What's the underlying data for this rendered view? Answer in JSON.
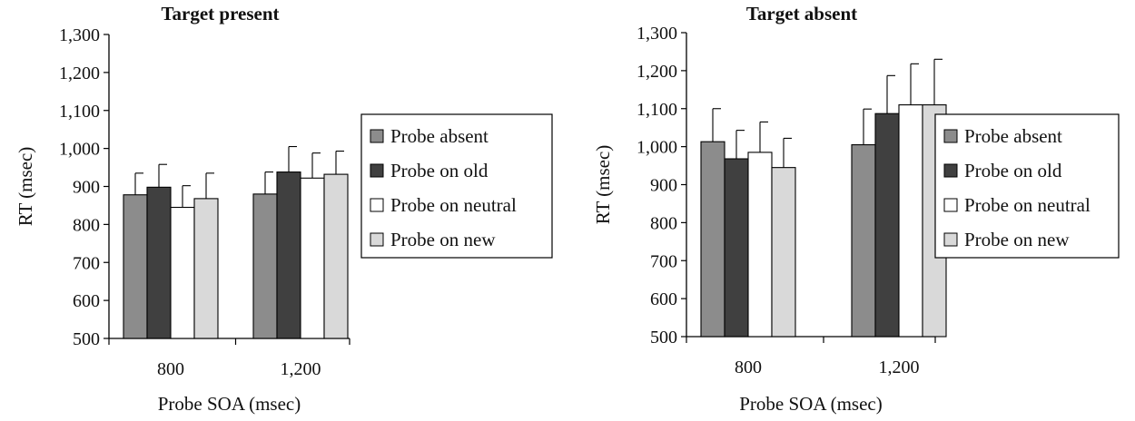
{
  "chart_data": [
    {
      "type": "bar",
      "title": "Target present",
      "xlabel": "Probe SOA (msec)",
      "ylabel": "RT (msec)",
      "ylim": [
        500,
        1300
      ],
      "yticks": [
        "500",
        "600",
        "700",
        "800",
        "900",
        "1,000",
        "1,100",
        "1,200",
        "1,300"
      ],
      "categories": [
        "800",
        "1,200"
      ],
      "legend_position": "right",
      "series": [
        {
          "name": "Probe absent",
          "values": [
            878,
            880
          ],
          "errors": [
            57,
            58
          ],
          "color": "#8c8c8c"
        },
        {
          "name": "Probe on old",
          "values": [
            898,
            938
          ],
          "errors": [
            60,
            67
          ],
          "color": "#404040"
        },
        {
          "name": "Probe on neutral",
          "values": [
            845,
            922
          ],
          "errors": [
            57,
            66
          ],
          "color": "#ffffff"
        },
        {
          "name": "Probe on new",
          "values": [
            868,
            932
          ],
          "errors": [
            67,
            61
          ],
          "color": "#d9d9d9"
        }
      ]
    },
    {
      "type": "bar",
      "title": "Target absent",
      "xlabel": "Probe SOA (msec)",
      "ylabel": "RT (msec)",
      "ylim": [
        500,
        1300
      ],
      "yticks": [
        "500",
        "600",
        "700",
        "800",
        "900",
        "1,000",
        "1,100",
        "1,200",
        "1,300"
      ],
      "categories": [
        "800",
        "1,200"
      ],
      "legend_position": "right",
      "series": [
        {
          "name": "Probe absent",
          "values": [
            1013,
            1005
          ],
          "errors": [
            87,
            94
          ],
          "color": "#8c8c8c"
        },
        {
          "name": "Probe on old",
          "values": [
            968,
            1087
          ],
          "errors": [
            75,
            100
          ],
          "color": "#404040"
        },
        {
          "name": "Probe on neutral",
          "values": [
            985,
            1110
          ],
          "errors": [
            80,
            108
          ],
          "color": "#ffffff"
        },
        {
          "name": "Probe on new",
          "values": [
            945,
            1110
          ],
          "errors": [
            77,
            120
          ],
          "color": "#d9d9d9"
        }
      ]
    }
  ]
}
